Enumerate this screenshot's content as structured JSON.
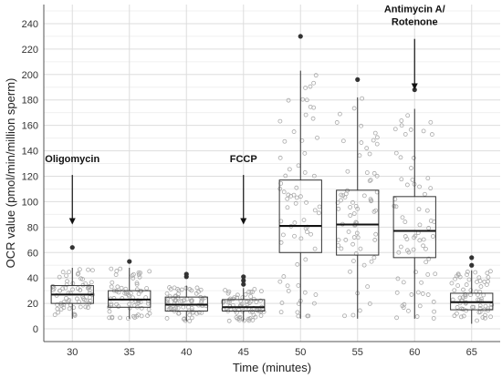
{
  "chart_data": {
    "type": "boxplot",
    "title": "",
    "xlabel": "Time (minutes)",
    "ylabel": "OCR value (pmol/min/million sperm)",
    "ylim": [
      -10,
      255
    ],
    "yticks": [
      0,
      20,
      40,
      60,
      80,
      100,
      120,
      140,
      160,
      180,
      200,
      220,
      240
    ],
    "grid": true,
    "categories": [
      "30",
      "35",
      "40",
      "45",
      "50",
      "55",
      "60",
      "65"
    ],
    "boxes": [
      {
        "category": "30",
        "q1": 20,
        "median": 27,
        "q3": 34,
        "whisker_low": 8,
        "whisker_high": 48,
        "outliers": [
          64
        ]
      },
      {
        "category": "35",
        "q1": 17,
        "median": 23,
        "q3": 30,
        "whisker_low": 8,
        "whisker_high": 48,
        "outliers": [
          53
        ]
      },
      {
        "category": "40",
        "q1": 14,
        "median": 19,
        "q3": 25,
        "whisker_low": 6,
        "whisker_high": 34,
        "outliers": [
          41,
          43
        ]
      },
      {
        "category": "45",
        "q1": 14,
        "median": 17,
        "q3": 23,
        "whisker_low": 6,
        "whisker_high": 32,
        "outliers": [
          35,
          38,
          41
        ]
      },
      {
        "category": "50",
        "q1": 60,
        "median": 81,
        "q3": 117,
        "whisker_low": 8,
        "whisker_high": 203,
        "outliers": [
          230
        ]
      },
      {
        "category": "55",
        "q1": 58,
        "median": 82,
        "q3": 109,
        "whisker_low": 8,
        "whisker_high": 182,
        "outliers": [
          196
        ]
      },
      {
        "category": "60",
        "q1": 56,
        "median": 77,
        "q3": 104,
        "whisker_low": 8,
        "whisker_high": 173,
        "outliers": [
          188
        ]
      },
      {
        "category": "65",
        "q1": 15,
        "median": 21,
        "q3": 28,
        "whisker_low": 4,
        "whisker_high": 46,
        "outliers": [
          50,
          56
        ]
      }
    ],
    "annotations": [
      {
        "lines": [
          "Oligomycin"
        ],
        "category": "30",
        "text_y": 131,
        "arrow_from": 121,
        "arrow_to": 82
      },
      {
        "lines": [
          "FCCP"
        ],
        "category": "45",
        "text_y": 131,
        "arrow_from": 121,
        "arrow_to": 82
      },
      {
        "lines": [
          "Antimycin A/",
          "Rotenone"
        ],
        "category": "60",
        "text_y": 249,
        "arrow_from": 228,
        "arrow_to": 188
      }
    ]
  }
}
